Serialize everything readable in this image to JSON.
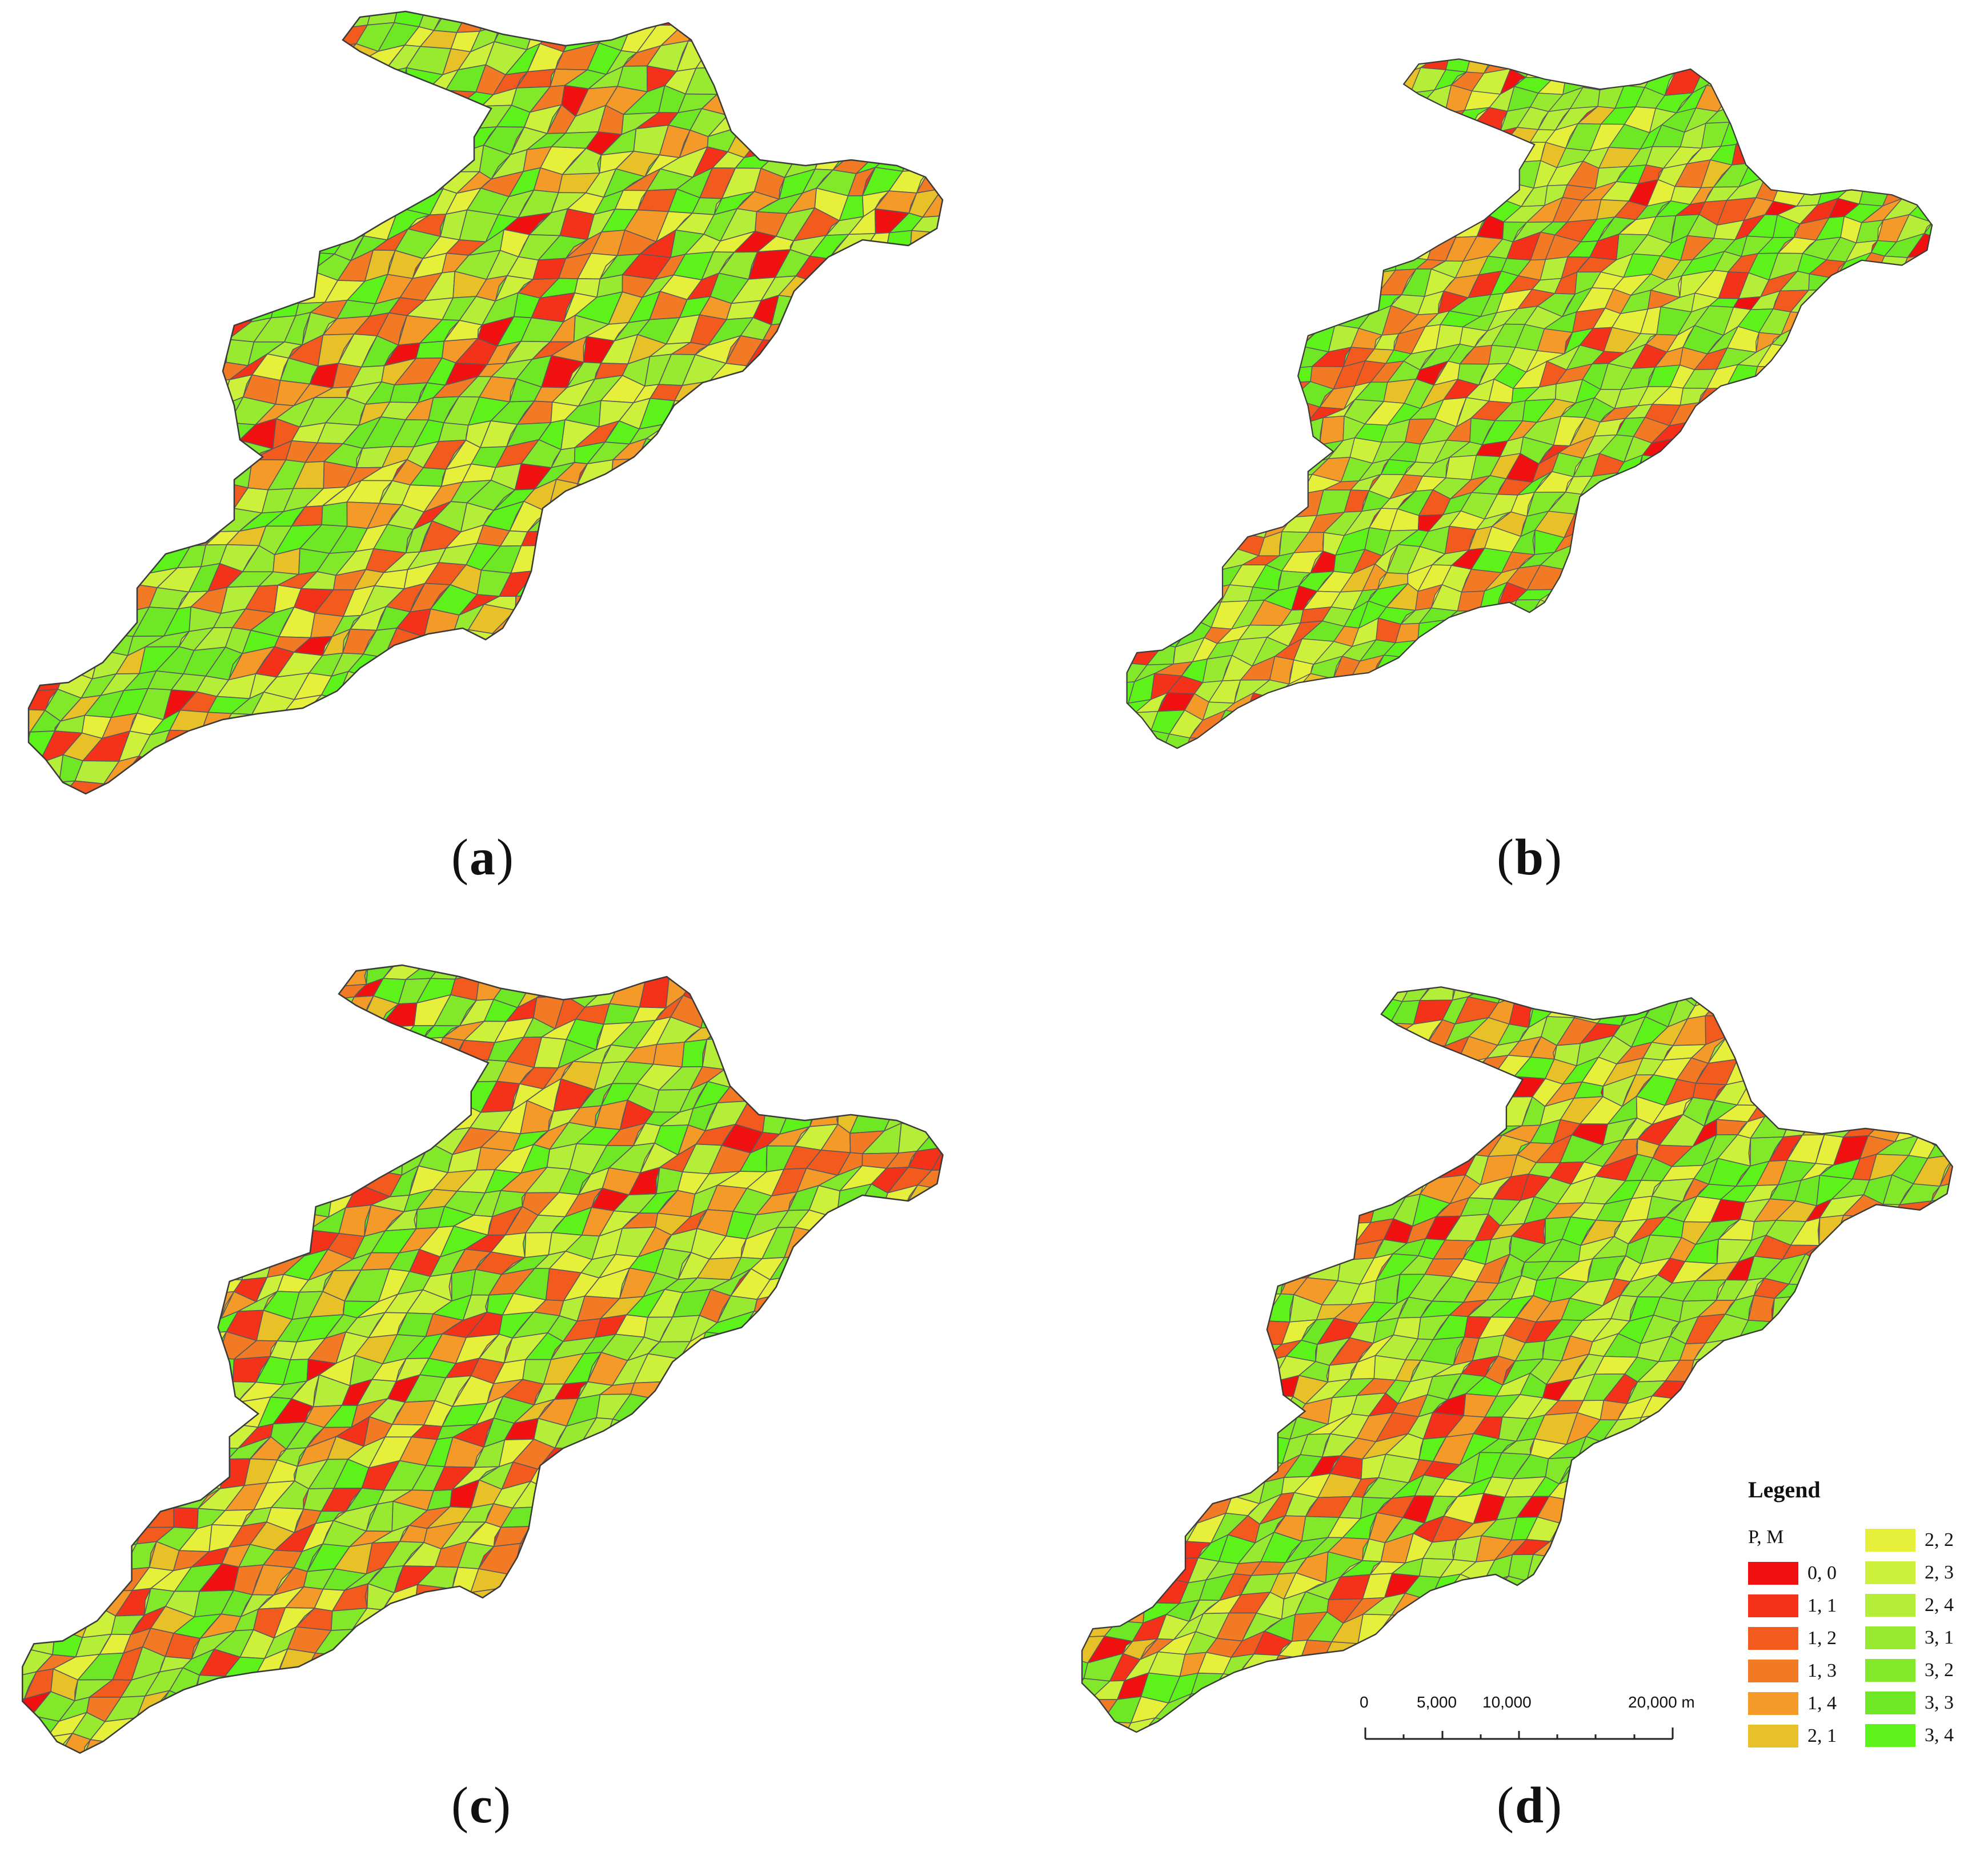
{
  "panels": [
    {
      "id": "a",
      "caption_letter": "a"
    },
    {
      "id": "b",
      "caption_letter": "b"
    },
    {
      "id": "c",
      "caption_letter": "c"
    },
    {
      "id": "d",
      "caption_letter": "d"
    }
  ],
  "legend": {
    "title": "Legend",
    "subtitle": "P, M",
    "classes": [
      {
        "label": "0, 0",
        "color": "#f01010"
      },
      {
        "label": "1, 1",
        "color": "#f4321a"
      },
      {
        "label": "1, 2",
        "color": "#f25a1e"
      },
      {
        "label": "1, 3",
        "color": "#f27a24"
      },
      {
        "label": "1, 4",
        "color": "#f49a28"
      },
      {
        "label": "2, 1",
        "color": "#e8c028"
      },
      {
        "label": "2, 2",
        "color": "#e6f03a"
      },
      {
        "label": "2, 3",
        "color": "#cdf03a"
      },
      {
        "label": "2, 4",
        "color": "#b4ee38"
      },
      {
        "label": "3, 1",
        "color": "#98ea30"
      },
      {
        "label": "3, 2",
        "color": "#82e82a"
      },
      {
        "label": "3, 3",
        "color": "#6ee824"
      },
      {
        "label": "3, 4",
        "color": "#5cf21a"
      }
    ]
  },
  "scalebar": {
    "labels": [
      "0",
      "5,000",
      "10,000",
      "20,000 m"
    ],
    "ticks_km": [
      0,
      5,
      10,
      20
    ]
  },
  "palette_outline": "#5a5a5a"
}
